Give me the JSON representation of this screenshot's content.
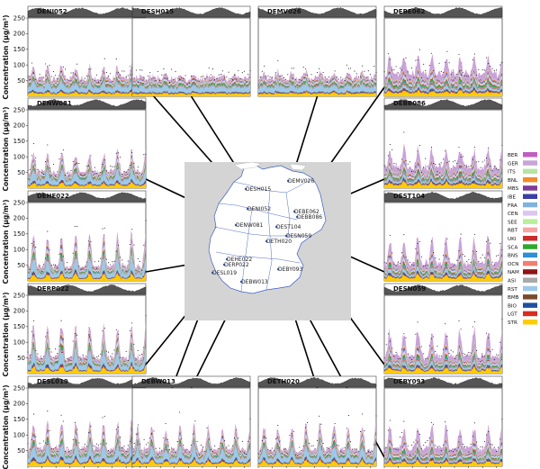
{
  "chart_data": {
    "type": "area",
    "ylabel": "Concentration (µg/m³)",
    "yticks": [
      50,
      100,
      150,
      200,
      250
    ],
    "ylim": [
      0,
      250
    ],
    "xticks": [
      "6",
      "7",
      "8",
      "9",
      "10",
      "11",
      "12",
      "13",
      "14"
    ],
    "xlim": [
      6,
      14.4
    ],
    "stack_order": [
      "STR",
      "LGT",
      "BIO",
      "BMB",
      "RST",
      "ASI",
      "NAM",
      "OCN",
      "BNS",
      "SCA",
      "UKI",
      "RBT",
      "SEE",
      "CEN",
      "FRA",
      "IBE",
      "MBS",
      "BNL",
      "ITS",
      "GER",
      "BER"
    ],
    "legend": [
      {
        "name": "BER",
        "color": "#c05fc0"
      },
      {
        "name": "GER",
        "color": "#c7a4d8"
      },
      {
        "name": "ITS",
        "color": "#b7e3a3"
      },
      {
        "name": "BNL",
        "color": "#f28c2b"
      },
      {
        "name": "MBS",
        "color": "#7d3c98"
      },
      {
        "name": "IBE",
        "color": "#3a3fa6"
      },
      {
        "name": "FRA",
        "color": "#7fb2e0"
      },
      {
        "name": "CEN",
        "color": "#dcc6ef"
      },
      {
        "name": "SEE",
        "color": "#b9ef9a"
      },
      {
        "name": "RBT",
        "color": "#f7a6a6"
      },
      {
        "name": "UKI",
        "color": "#cc2b2b"
      },
      {
        "name": "SCA",
        "color": "#2fa82f"
      },
      {
        "name": "BNS",
        "color": "#2e8fd6"
      },
      {
        "name": "OCN",
        "color": "#f07f70"
      },
      {
        "name": "NAM",
        "color": "#8f1414"
      },
      {
        "name": "ASI",
        "color": "#a9a9a9"
      },
      {
        "name": "RST",
        "color": "#9cc9e9"
      },
      {
        "name": "BMB",
        "color": "#7b4a2b"
      },
      {
        "name": "BIO",
        "color": "#1f4fa0"
      },
      {
        "name": "LGT",
        "color": "#d62d20"
      },
      {
        "name": "STR",
        "color": "#ffcc00"
      }
    ],
    "panels": [
      {
        "name": "DENI052",
        "dominant": "RST",
        "peak": 95,
        "base": 60
      },
      {
        "name": "DESH015",
        "dominant": "RST",
        "peak": 70,
        "base": 60
      },
      {
        "name": "DEMV026",
        "dominant": "RST",
        "peak": 80,
        "base": 60
      },
      {
        "name": "DEBE062",
        "dominant": "GER",
        "peak": 120,
        "base": 75
      },
      {
        "name": "DENW081",
        "dominant": "RST",
        "peak": 110,
        "base": 55
      },
      {
        "name": "DEBB086",
        "dominant": "GER",
        "peak": 125,
        "base": 70
      },
      {
        "name": "DEHE022",
        "dominant": "RST",
        "peak": 140,
        "base": 50
      },
      {
        "name": "DEST104",
        "dominant": "GER",
        "peak": 130,
        "base": 60
      },
      {
        "name": "DERP022",
        "dominant": "RST",
        "peak": 145,
        "base": 55
      },
      {
        "name": "DESN059",
        "dominant": "GER",
        "peak": 130,
        "base": 60
      },
      {
        "name": "DESL019",
        "dominant": "RST",
        "peak": 135,
        "base": 60
      },
      {
        "name": "DEBW013",
        "dominant": "RST",
        "peak": 120,
        "base": 55
      },
      {
        "name": "DETH020",
        "dominant": "RST",
        "peak": 125,
        "base": 55
      },
      {
        "name": "DEBY093",
        "dominant": "GER",
        "peak": 120,
        "base": 60
      }
    ],
    "map_stations": [
      "DESH015",
      "DEMV026",
      "DENI052",
      "DEBE062",
      "DEBB086",
      "DENW081",
      "DEST104",
      "DESN059",
      "DETH020",
      "DEHE022",
      "DERP022",
      "DESL019",
      "DEBY093",
      "DEBW013"
    ]
  }
}
